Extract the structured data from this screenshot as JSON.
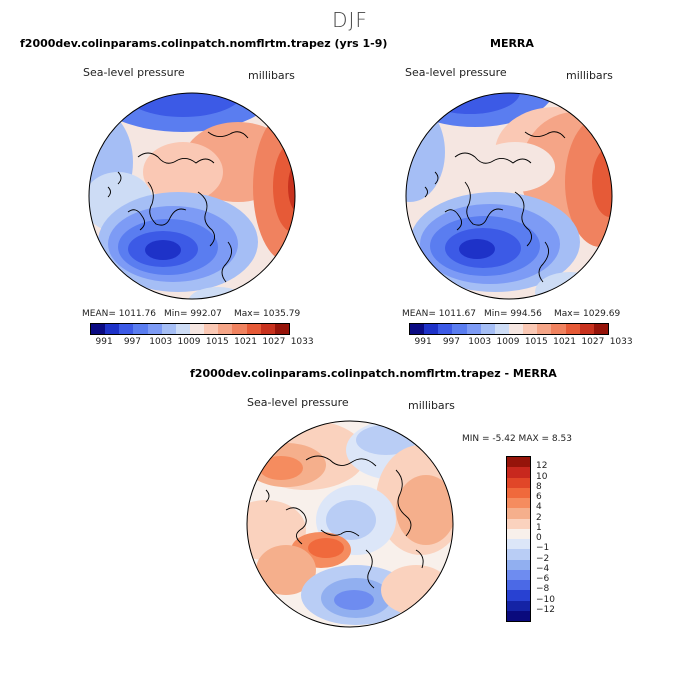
{
  "figure": {
    "season": "DJF",
    "panel1": {
      "title": "f2000dev.colinparams.colinpatch.nomflrtm.trapez (yrs 1-9)",
      "variable": "Sea-level pressure",
      "units": "millibars",
      "mean": "MEAN= 1011.76",
      "min": "Min= 992.07",
      "max": "Max= 1035.79"
    },
    "panel2": {
      "title": "MERRA",
      "variable": "Sea-level pressure",
      "units": "millibars",
      "mean": "MEAN= 1011.67",
      "min": "Min= 994.56",
      "max": "Max= 1029.69"
    },
    "panel3": {
      "title": "f2000dev.colinparams.colinpatch.nomflrtm.trapez - MERRA",
      "variable": "Sea-level pressure",
      "units": "millibars",
      "minmax": "MIN =   -5.42  MAX =    8.53"
    }
  },
  "colorbar_abs": {
    "colors": [
      "#0a0a82",
      "#1e32c8",
      "#3c5ae6",
      "#5a7df0",
      "#7d9bf5",
      "#a5bef5",
      "#cddcf5",
      "#f5e6e1",
      "#fac8b4",
      "#f5a587",
      "#f0825f",
      "#e65a37",
      "#c8321e",
      "#96140a"
    ],
    "tick_labels": [
      "991",
      "997",
      "1003",
      "1009",
      "1015",
      "1021",
      "1027",
      "1033"
    ]
  },
  "colorbar_diff": {
    "colors": [
      "#96140a",
      "#c8281e",
      "#e14628",
      "#f0693c",
      "#f58c5f",
      "#f5af8c",
      "#fad2be",
      "#f8f0eb",
      "#dce6f8",
      "#b9cdf5",
      "#91aff0",
      "#6e8cf0",
      "#4b69e6",
      "#2841d2",
      "#1423a5",
      "#0a0a7d"
    ],
    "tick_labels": [
      "12",
      "10",
      "8",
      "6",
      "4",
      "2",
      "1",
      "0",
      "−1",
      "−2",
      "−4",
      "−6",
      "−8",
      "−10",
      "−12"
    ]
  }
}
